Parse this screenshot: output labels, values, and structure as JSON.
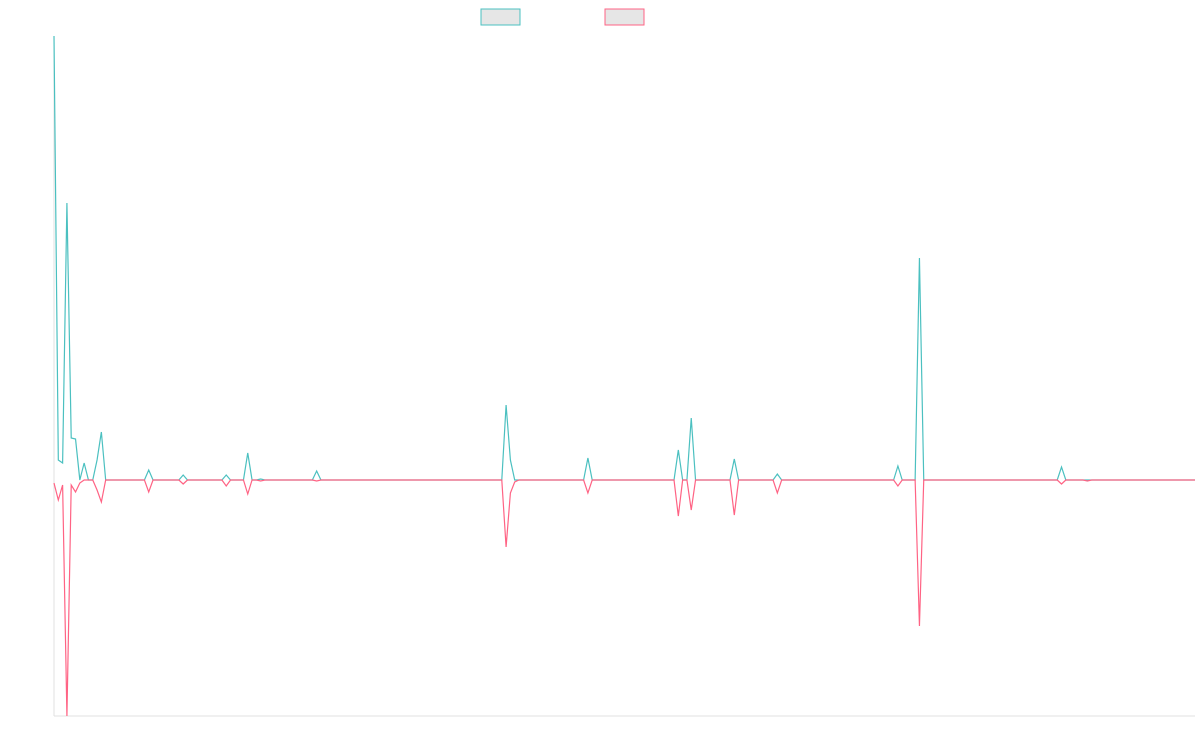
{
  "chart_data": {
    "type": "line",
    "categories": [
      null,
      null,
      null,
      null,
      null,
      null,
      null,
      null,
      null,
      null,
      null,
      null,
      null,
      null,
      null,
      null,
      null,
      null,
      null,
      null,
      null,
      null,
      null,
      null,
      null,
      null,
      null,
      null,
      null,
      null,
      null,
      null,
      null,
      null,
      null,
      null,
      null,
      null,
      null,
      null,
      null,
      null,
      null,
      null,
      null,
      null,
      null,
      null,
      null,
      null,
      null,
      null,
      null,
      null,
      null,
      null,
      null,
      null,
      null,
      null,
      null,
      null,
      null,
      null,
      null,
      null,
      null,
      null,
      null,
      null,
      null,
      null,
      null,
      null,
      null,
      null,
      null,
      null,
      null,
      null,
      null,
      null,
      null,
      null,
      null,
      null,
      null,
      null,
      null,
      null,
      null,
      null,
      null,
      null,
      null,
      null,
      null,
      null,
      null,
      null,
      null,
      null,
      null,
      null,
      null,
      null,
      null,
      null,
      null,
      null,
      null,
      null,
      null,
      null,
      null,
      null,
      null,
      null,
      null,
      null,
      null,
      null,
      null,
      null,
      null,
      null,
      null,
      null,
      null,
      null,
      null,
      null,
      null,
      null,
      null,
      null,
      null,
      null,
      null,
      null,
      null,
      null,
      null,
      null,
      null,
      null,
      null,
      null,
      null,
      null,
      null,
      null,
      null,
      null,
      null,
      null,
      null,
      null,
      null,
      null,
      null,
      null,
      null,
      null,
      null,
      null,
      null,
      null,
      null,
      null,
      null,
      null,
      null,
      null,
      null,
      null,
      null,
      null,
      null,
      null,
      null,
      null,
      null,
      null,
      null,
      null,
      null,
      null,
      null,
      null,
      null,
      null,
      null,
      null,
      null,
      null,
      null,
      null,
      null,
      null,
      null,
      null,
      null,
      null,
      null,
      null,
      null,
      null,
      null,
      null,
      null,
      null,
      null,
      null,
      null,
      null,
      null,
      null,
      null,
      null,
      null,
      null,
      null,
      null,
      null,
      null,
      null,
      null,
      null,
      null,
      null,
      null,
      null,
      null,
      null,
      null,
      null,
      null,
      null,
      null,
      null,
      null,
      null,
      null,
      null,
      null,
      null,
      null,
      null,
      null,
      null,
      null,
      null,
      null,
      null,
      null,
      null,
      null,
      null,
      null,
      null,
      null,
      null,
      null,
      null,
      null
    ],
    "series": [
      {
        "color": "#4bc0c0",
        "values": [
          444,
          20,
          17,
          277,
          42,
          41,
          0,
          17,
          0,
          0,
          20,
          48,
          0,
          0,
          0,
          0,
          0,
          0,
          0,
          0,
          0,
          0,
          10,
          0,
          0,
          0,
          0,
          0,
          0,
          0,
          5,
          0,
          0,
          0,
          0,
          0,
          0,
          0,
          0,
          0,
          5,
          0,
          0,
          0,
          0,
          27,
          0,
          0,
          1,
          0,
          0,
          0,
          0,
          0,
          0,
          0,
          0,
          0,
          0,
          0,
          0,
          9,
          0,
          0,
          0,
          0,
          0,
          0,
          0,
          0,
          0,
          0,
          0,
          0,
          0,
          0,
          0,
          0,
          0,
          0,
          0,
          0,
          0,
          0,
          0,
          0,
          0,
          0,
          0,
          0,
          0,
          0,
          0,
          0,
          0,
          0,
          0,
          0,
          0,
          0,
          0,
          0,
          0,
          0,
          0,
          75,
          20,
          0,
          0,
          0,
          0,
          0,
          0,
          0,
          0,
          0,
          0,
          0,
          0,
          0,
          0,
          0,
          0,
          0,
          22,
          0,
          0,
          0,
          0,
          0,
          0,
          0,
          0,
          0,
          0,
          0,
          0,
          0,
          0,
          0,
          0,
          0,
          0,
          0,
          0,
          30,
          0,
          0,
          62,
          0,
          0,
          0,
          0,
          0,
          0,
          0,
          0,
          0,
          21,
          0,
          0,
          0,
          0,
          0,
          0,
          0,
          0,
          0,
          6,
          0,
          0,
          0,
          0,
          0,
          0,
          0,
          0,
          0,
          0,
          0,
          0,
          0,
          0,
          0,
          0,
          0,
          0,
          0,
          0,
          0,
          0,
          0,
          0,
          0,
          0,
          0,
          14,
          0,
          0,
          0,
          0,
          222,
          0,
          0,
          0,
          0,
          0,
          0,
          0,
          0,
          0,
          0,
          0,
          0,
          0,
          0,
          0,
          0,
          0,
          0,
          0,
          0,
          0,
          0,
          0,
          0,
          0,
          0,
          0,
          0,
          0,
          0,
          0,
          0,
          13,
          0,
          0,
          0,
          0,
          0,
          0,
          0,
          0,
          0,
          0,
          0,
          0,
          0,
          0,
          0,
          0,
          0,
          0,
          0,
          0,
          0,
          0,
          0,
          0,
          0,
          0,
          0,
          0,
          0,
          0,
          0
        ]
      },
      {
        "color": "#ff6384",
        "values": [
          -3,
          -20,
          -5,
          -236,
          -5,
          -12,
          -3,
          0,
          0,
          0,
          -10,
          -22,
          0,
          0,
          0,
          0,
          0,
          0,
          0,
          0,
          0,
          0,
          -12,
          0,
          0,
          0,
          0,
          0,
          0,
          0,
          -4,
          0,
          0,
          0,
          0,
          0,
          0,
          0,
          0,
          0,
          -6,
          0,
          0,
          0,
          0,
          -14,
          0,
          0,
          -1,
          0,
          0,
          0,
          0,
          0,
          0,
          0,
          0,
          0,
          0,
          0,
          0,
          -1,
          0,
          0,
          0,
          0,
          0,
          0,
          0,
          0,
          0,
          0,
          0,
          0,
          0,
          0,
          0,
          0,
          0,
          0,
          0,
          0,
          0,
          0,
          0,
          0,
          0,
          0,
          0,
          0,
          0,
          0,
          0,
          0,
          0,
          0,
          0,
          0,
          0,
          0,
          0,
          0,
          0,
          0,
          0,
          -67,
          -13,
          -2,
          0,
          0,
          0,
          0,
          0,
          0,
          0,
          0,
          0,
          0,
          0,
          0,
          0,
          0,
          0,
          0,
          -13,
          0,
          0,
          0,
          0,
          0,
          0,
          0,
          0,
          0,
          0,
          0,
          0,
          0,
          0,
          0,
          0,
          0,
          0,
          0,
          0,
          -36,
          0,
          0,
          -30,
          0,
          0,
          0,
          0,
          0,
          0,
          0,
          0,
          0,
          -35,
          0,
          0,
          0,
          0,
          0,
          0,
          0,
          0,
          0,
          -13,
          0,
          0,
          0,
          0,
          0,
          0,
          0,
          0,
          0,
          0,
          0,
          0,
          0,
          0,
          0,
          0,
          0,
          0,
          0,
          0,
          0,
          0,
          0,
          0,
          0,
          0,
          0,
          -6,
          0,
          0,
          0,
          0,
          -146,
          0,
          0,
          0,
          0,
          0,
          0,
          0,
          0,
          0,
          0,
          0,
          0,
          0,
          0,
          0,
          0,
          0,
          0,
          0,
          0,
          0,
          0,
          0,
          0,
          0,
          0,
          0,
          0,
          0,
          0,
          0,
          0,
          -4,
          0,
          0,
          0,
          0,
          0,
          -1,
          0,
          0,
          0,
          0,
          0,
          0,
          0,
          0,
          0,
          0,
          0,
          0,
          0,
          0,
          0,
          0,
          0,
          0,
          0,
          0,
          0,
          0,
          0,
          0,
          0
        ]
      }
    ],
    "ylim": [
      -236,
      444
    ]
  }
}
